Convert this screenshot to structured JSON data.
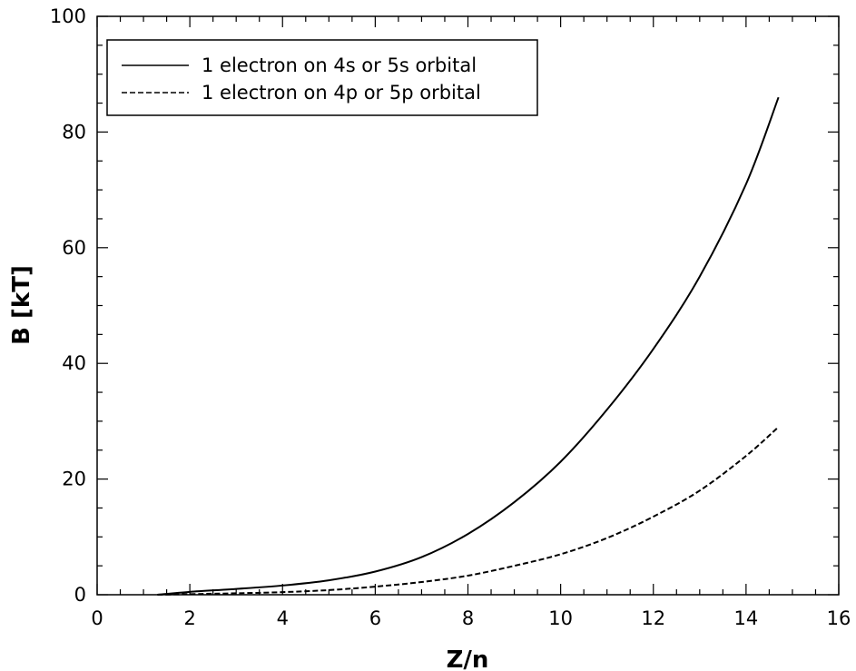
{
  "chart_data": {
    "type": "line",
    "title": "",
    "xlabel": "Z/n",
    "ylabel": "B [kT]",
    "xlim": [
      0,
      16
    ],
    "ylim": [
      0,
      100
    ],
    "x_ticks": [
      0,
      2,
      4,
      6,
      8,
      10,
      12,
      14,
      16
    ],
    "y_ticks": [
      0,
      20,
      40,
      60,
      80,
      100
    ],
    "x_tick_labels": [
      "0",
      "2",
      "4",
      "6",
      "8",
      "10",
      "12",
      "14",
      "16"
    ],
    "y_tick_labels": [
      "0",
      "20",
      "40",
      "60",
      "80",
      "100"
    ],
    "grid": false,
    "legend_position": "top-left",
    "series": [
      {
        "name": "1 electron on 4s or 5s orbital",
        "style": "solid",
        "color": "#000000",
        "x": [
          1.3,
          2,
          3,
          4,
          5,
          6,
          7,
          8,
          9,
          10,
          11,
          12,
          13,
          14,
          14.7
        ],
        "y": [
          0.0,
          0.5,
          1.0,
          1.6,
          2.5,
          4.0,
          6.5,
          10.5,
          16.0,
          23.0,
          32.0,
          42.5,
          55.0,
          71.0,
          86.0
        ]
      },
      {
        "name": "1 electron on 4p or 5p orbital",
        "style": "dashed",
        "color": "#000000",
        "x": [
          1.3,
          2,
          3,
          4,
          5,
          6,
          7,
          8,
          9,
          10,
          11,
          12,
          13,
          14,
          14.7
        ],
        "y": [
          0.0,
          0.1,
          0.25,
          0.45,
          0.8,
          1.4,
          2.2,
          3.3,
          5.0,
          7.0,
          9.8,
          13.5,
          18.0,
          24.0,
          29.0
        ]
      }
    ]
  }
}
